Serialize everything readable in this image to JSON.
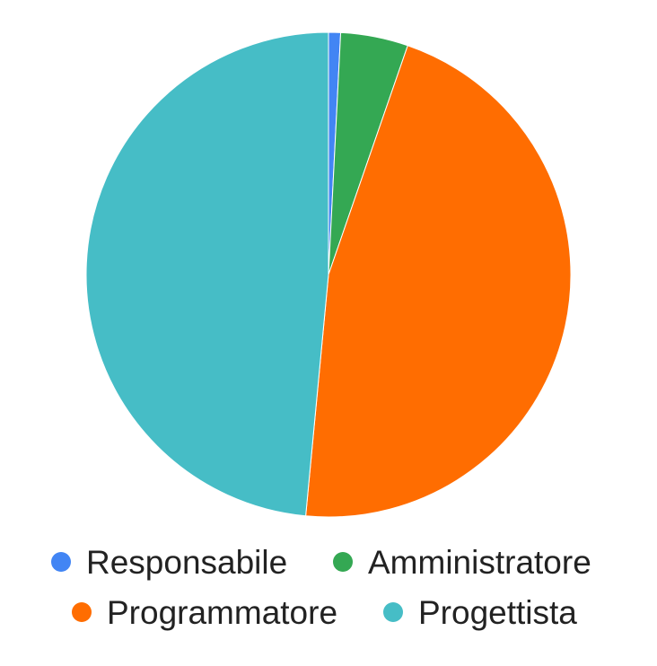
{
  "chart_data": {
    "type": "pie",
    "title": "",
    "legend_position": "bottom",
    "categories": [
      "Responsabile",
      "Amministratore",
      "Programmatore",
      "Progettista"
    ],
    "values": [
      0.8,
      4.5,
      46.2,
      48.5
    ],
    "colors": [
      "#4285f4",
      "#34a853",
      "#ff6d01",
      "#46bdc6"
    ]
  }
}
